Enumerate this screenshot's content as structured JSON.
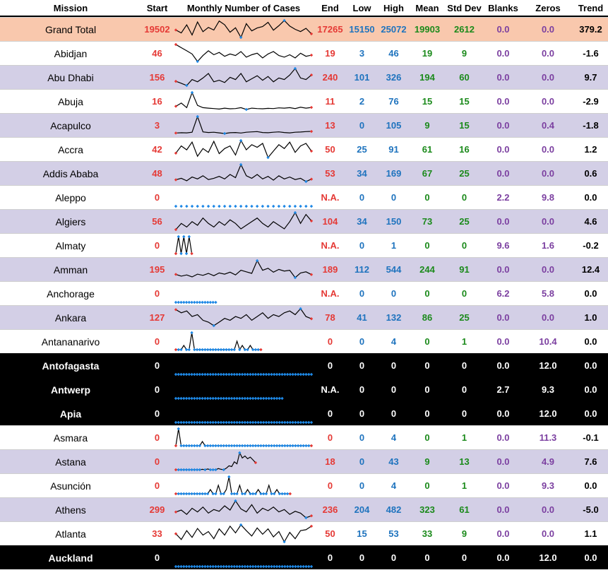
{
  "headers": {
    "mission": "Mission",
    "start": "Start",
    "spark": "Monthly Number of Cases",
    "end": "End",
    "low": "Low",
    "high": "High",
    "mean": "Mean",
    "std": "Std Dev",
    "blanks": "Blanks",
    "zeros": "Zeros",
    "trend": "Trend"
  },
  "colors": {
    "grand_bg": "#f9c8ad",
    "lavender_bg": "#d3cfe6",
    "dark_bg": "#000000",
    "spark_line": "#000000",
    "spark_marker": "#1e88e5",
    "spark_endpoint": "#e53935"
  },
  "rows": [
    {
      "mission": "Grand Total",
      "start": "19502",
      "end": "17265",
      "low": "15150",
      "high": "25072",
      "mean": "19903",
      "std": "2612",
      "blanks": "0.0",
      "zeros": "0.0",
      "trend": "379.2",
      "style": "grand"
    },
    {
      "mission": "Abidjan",
      "start": "46",
      "end": "19",
      "low": "3",
      "high": "46",
      "mean": "19",
      "std": "9",
      "blanks": "0.0",
      "zeros": "0.0",
      "trend": "-1.6",
      "style": "white"
    },
    {
      "mission": "Abu Dhabi",
      "start": "156",
      "end": "240",
      "low": "101",
      "high": "326",
      "mean": "194",
      "std": "60",
      "blanks": "0.0",
      "zeros": "0.0",
      "trend": "9.7",
      "style": "lav"
    },
    {
      "mission": "Abuja",
      "start": "16",
      "end": "11",
      "low": "2",
      "high": "76",
      "mean": "15",
      "std": "15",
      "blanks": "0.0",
      "zeros": "0.0",
      "trend": "-2.9",
      "style": "white"
    },
    {
      "mission": "Acapulco",
      "start": "3",
      "end": "13",
      "low": "0",
      "high": "105",
      "mean": "9",
      "std": "15",
      "blanks": "0.0",
      "zeros": "0.4",
      "trend": "-1.8",
      "style": "lav"
    },
    {
      "mission": "Accra",
      "start": "42",
      "end": "50",
      "low": "25",
      "high": "91",
      "mean": "61",
      "std": "16",
      "blanks": "0.0",
      "zeros": "0.0",
      "trend": "1.2",
      "style": "white"
    },
    {
      "mission": "Addis Ababa",
      "start": "48",
      "end": "53",
      "low": "34",
      "high": "169",
      "mean": "67",
      "std": "25",
      "blanks": "0.0",
      "zeros": "0.0",
      "trend": "0.6",
      "style": "lav"
    },
    {
      "mission": "Aleppo",
      "start": "0",
      "end": "N.A.",
      "low": "0",
      "high": "0",
      "mean": "0",
      "std": "0",
      "blanks": "2.2",
      "zeros": "9.8",
      "trend": "0.0",
      "style": "white"
    },
    {
      "mission": "Algiers",
      "start": "56",
      "end": "104",
      "low": "34",
      "high": "150",
      "mean": "73",
      "std": "25",
      "blanks": "0.0",
      "zeros": "0.0",
      "trend": "4.6",
      "style": "lav"
    },
    {
      "mission": "Almaty",
      "start": "0",
      "end": "N.A.",
      "low": "0",
      "high": "1",
      "mean": "0",
      "std": "0",
      "blanks": "9.6",
      "zeros": "1.6",
      "trend": "-0.2",
      "style": "white"
    },
    {
      "mission": "Amman",
      "start": "195",
      "end": "189",
      "low": "112",
      "high": "544",
      "mean": "244",
      "std": "91",
      "blanks": "0.0",
      "zeros": "0.0",
      "trend": "12.4",
      "style": "lav"
    },
    {
      "mission": "Anchorage",
      "start": "0",
      "end": "N.A.",
      "low": "0",
      "high": "0",
      "mean": "0",
      "std": "0",
      "blanks": "6.2",
      "zeros": "5.8",
      "trend": "0.0",
      "style": "white"
    },
    {
      "mission": "Ankara",
      "start": "127",
      "end": "78",
      "low": "41",
      "high": "132",
      "mean": "86",
      "std": "25",
      "blanks": "0.0",
      "zeros": "0.0",
      "trend": "1.0",
      "style": "lav"
    },
    {
      "mission": "Antananarivo",
      "start": "0",
      "end": "0",
      "low": "0",
      "high": "4",
      "mean": "0",
      "std": "1",
      "blanks": "0.0",
      "zeros": "10.4",
      "trend": "0.0",
      "style": "white"
    },
    {
      "mission": "Antofagasta",
      "start": "0",
      "end": "0",
      "low": "0",
      "high": "0",
      "mean": "0",
      "std": "0",
      "blanks": "0.0",
      "zeros": "12.0",
      "trend": "0.0",
      "style": "dark"
    },
    {
      "mission": "Antwerp",
      "start": "0",
      "end": "N.A.",
      "low": "0",
      "high": "0",
      "mean": "0",
      "std": "0",
      "blanks": "2.7",
      "zeros": "9.3",
      "trend": "0.0",
      "style": "dark"
    },
    {
      "mission": "Apia",
      "start": "0",
      "end": "0",
      "low": "0",
      "high": "0",
      "mean": "0",
      "std": "0",
      "blanks": "0.0",
      "zeros": "12.0",
      "trend": "0.0",
      "style": "dark"
    },
    {
      "mission": "Asmara",
      "start": "0",
      "end": "0",
      "low": "0",
      "high": "4",
      "mean": "0",
      "std": "1",
      "blanks": "0.0",
      "zeros": "11.3",
      "trend": "-0.1",
      "style": "white"
    },
    {
      "mission": "Astana",
      "start": "0",
      "end": "18",
      "low": "0",
      "high": "43",
      "mean": "9",
      "std": "13",
      "blanks": "0.0",
      "zeros": "4.9",
      "trend": "7.6",
      "style": "lav"
    },
    {
      "mission": "Asunción",
      "start": "0",
      "end": "0",
      "low": "0",
      "high": "4",
      "mean": "0",
      "std": "1",
      "blanks": "0.0",
      "zeros": "9.3",
      "trend": "0.0",
      "style": "white"
    },
    {
      "mission": "Athens",
      "start": "299",
      "end": "236",
      "low": "204",
      "high": "482",
      "mean": "323",
      "std": "61",
      "blanks": "0.0",
      "zeros": "0.0",
      "trend": "-5.0",
      "style": "lav"
    },
    {
      "mission": "Atlanta",
      "start": "33",
      "end": "50",
      "low": "15",
      "high": "53",
      "mean": "33",
      "std": "9",
      "blanks": "0.0",
      "zeros": "0.0",
      "trend": "1.1",
      "style": "white"
    },
    {
      "mission": "Auckland",
      "start": "0",
      "end": "0",
      "low": "0",
      "high": "0",
      "mean": "0",
      "std": "0",
      "blanks": "0.0",
      "zeros": "12.0",
      "trend": "0.0",
      "style": "dark"
    }
  ],
  "chart_data": {
    "type": "table",
    "title": "",
    "columns": [
      "Mission",
      "Start",
      "Monthly Number of Cases",
      "End",
      "Low",
      "High",
      "Mean",
      "Std Dev",
      "Blanks",
      "Zeros",
      "Trend"
    ],
    "sparklines": {
      "Grand Total": {
        "values": [
          19502,
          17800,
          22500,
          16600,
          24200,
          18500,
          21000,
          19500,
          24800,
          22600,
          18200,
          20800,
          15150,
          23200,
          19000,
          20700,
          21500,
          24000,
          19400,
          22000,
          25072,
          21800,
          19900,
          18600,
          20500,
          17265
        ]
      },
      "Abidjan": {
        "values": [
          46,
          38,
          30,
          22,
          3,
          18,
          30,
          20,
          26,
          16,
          22,
          18,
          28,
          14,
          20,
          24,
          12,
          22,
          28,
          18,
          14,
          20,
          12,
          24,
          16,
          19
        ]
      },
      "Abu Dhabi": {
        "values": [
          156,
          130,
          101,
          180,
          150,
          200,
          260,
          150,
          170,
          140,
          210,
          180,
          260,
          150,
          190,
          230,
          170,
          220,
          150,
          200,
          180,
          240,
          326,
          200,
          180,
          240
        ]
      },
      "Abuja": {
        "values": [
          16,
          30,
          10,
          76,
          20,
          10,
          8,
          6,
          4,
          8,
          5,
          6,
          10,
          2,
          8,
          6,
          5,
          7,
          6,
          9,
          8,
          10,
          6,
          12,
          8,
          11
        ]
      },
      "Acapulco": {
        "values": [
          3,
          5,
          4,
          8,
          105,
          10,
          6,
          8,
          4,
          0,
          5,
          6,
          3,
          8,
          10,
          12,
          6,
          5,
          8,
          10,
          6,
          4,
          8,
          9,
          12,
          13
        ]
      },
      "Accra": {
        "values": [
          42,
          70,
          55,
          85,
          30,
          60,
          45,
          88,
          40,
          60,
          70,
          35,
          91,
          55,
          75,
          65,
          80,
          25,
          50,
          75,
          60,
          85,
          45,
          70,
          80,
          50
        ]
      },
      "Addis Ababa": {
        "values": [
          48,
          60,
          40,
          70,
          55,
          80,
          50,
          60,
          75,
          55,
          90,
          65,
          169,
          80,
          60,
          90,
          55,
          75,
          45,
          80,
          55,
          70,
          50,
          60,
          34,
          53
        ]
      },
      "Aleppo": {
        "values": [
          0,
          0,
          0,
          0,
          0,
          0,
          0,
          0,
          0,
          0,
          0,
          0,
          0,
          0,
          0,
          0,
          0,
          0,
          0,
          0,
          0,
          0,
          0,
          0,
          0,
          0
        ]
      },
      "Algiers": {
        "values": [
          56,
          90,
          70,
          100,
          80,
          120,
          90,
          70,
          100,
          80,
          110,
          90,
          60,
          80,
          100,
          120,
          90,
          70,
          100,
          80,
          60,
          100,
          150,
          90,
          140,
          104
        ]
      },
      "Almaty": {
        "values": [
          0,
          1,
          0,
          1,
          0,
          1,
          0
        ]
      },
      "Amman": {
        "values": [
          195,
          150,
          180,
          130,
          200,
          170,
          220,
          160,
          230,
          200,
          250,
          180,
          300,
          260,
          220,
          544,
          300,
          350,
          250,
          320,
          280,
          300,
          112,
          230,
          260,
          189
        ]
      },
      "Anchorage": {
        "values": [
          0,
          0,
          0,
          0,
          0,
          0,
          0,
          0,
          0,
          0,
          0,
          0,
          0,
          0,
          0,
          0
        ]
      },
      "Ankara": {
        "values": [
          127,
          110,
          120,
          90,
          100,
          70,
          60,
          41,
          60,
          80,
          70,
          90,
          80,
          100,
          70,
          90,
          110,
          80,
          100,
          90,
          110,
          120,
          100,
          132,
          90,
          78
        ]
      },
      "Antananarivo": {
        "values": [
          0,
          0,
          0,
          1,
          0,
          0,
          4,
          0,
          0,
          0,
          0,
          0,
          0,
          0,
          0,
          0,
          0,
          0,
          0,
          0,
          0,
          0,
          0,
          2,
          0,
          1,
          0,
          0,
          1,
          0,
          0,
          0,
          0
        ]
      },
      "Antofagasta": {
        "values": [
          0,
          0,
          0,
          0,
          0,
          0,
          0,
          0,
          0,
          0,
          0,
          0,
          0,
          0,
          0,
          0,
          0,
          0,
          0,
          0,
          0,
          0,
          0,
          0,
          0,
          0,
          0,
          0,
          0,
          0,
          0,
          0,
          0,
          0,
          0,
          0,
          0,
          0,
          0,
          0,
          0,
          0,
          0,
          0,
          0,
          0,
          0,
          0,
          0,
          0,
          0,
          0
        ]
      },
      "Antwerp": {
        "values": [
          0,
          0,
          0,
          0,
          0,
          0,
          0,
          0,
          0,
          0,
          0,
          0,
          0,
          0,
          0,
          0,
          0,
          0,
          0,
          0,
          0,
          0,
          0,
          0,
          0,
          0,
          0,
          0,
          0,
          0,
          0,
          0,
          0,
          0,
          0,
          0,
          0,
          0,
          0,
          0,
          0
        ]
      },
      "Apia": {
        "values": [
          0,
          0,
          0,
          0,
          0,
          0,
          0,
          0,
          0,
          0,
          0,
          0,
          0,
          0,
          0,
          0,
          0,
          0,
          0,
          0,
          0,
          0,
          0,
          0,
          0,
          0,
          0,
          0,
          0,
          0,
          0,
          0,
          0,
          0,
          0,
          0,
          0,
          0,
          0,
          0,
          0,
          0,
          0,
          0,
          0,
          0,
          0,
          0,
          0,
          0,
          0,
          0
        ]
      },
      "Asmara": {
        "values": [
          0,
          4,
          0,
          0,
          0,
          0,
          0,
          0,
          0,
          0,
          1,
          0,
          0,
          0,
          0,
          0,
          0,
          0,
          0,
          0,
          0,
          0,
          0,
          0,
          0,
          0,
          0,
          0,
          0,
          0,
          0,
          0,
          0,
          0,
          0,
          0,
          0,
          0,
          0,
          0,
          0,
          0,
          0,
          0,
          0,
          0,
          0,
          0,
          0,
          0,
          0,
          0
        ]
      },
      "Astana": {
        "values": [
          0,
          0,
          0,
          0,
          0,
          0,
          0,
          0,
          0,
          0,
          1,
          0,
          2,
          0,
          0,
          0,
          3,
          1,
          0,
          4,
          10,
          8,
          20,
          15,
          43,
          30,
          35,
          28,
          32,
          25,
          18
        ]
      },
      "Asunción": {
        "values": [
          0,
          0,
          0,
          0,
          0,
          0,
          0,
          0,
          0,
          0,
          0,
          0,
          0,
          1,
          0,
          0,
          2,
          0,
          0,
          1,
          4,
          0,
          0,
          0,
          2,
          0,
          0,
          1,
          0,
          0,
          0,
          1,
          0,
          0,
          0,
          2,
          0,
          0,
          1,
          0,
          0,
          0,
          0,
          0
        ]
      },
      "Athens": {
        "values": [
          299,
          330,
          260,
          360,
          300,
          380,
          280,
          340,
          310,
          400,
          330,
          482,
          350,
          300,
          420,
          280,
          360,
          320,
          380,
          300,
          340,
          260,
          310,
          280,
          204,
          236
        ]
      },
      "Atlanta": {
        "values": [
          33,
          20,
          40,
          25,
          45,
          30,
          38,
          22,
          44,
          30,
          50,
          35,
          53,
          40,
          28,
          46,
          32,
          44,
          26,
          38,
          15,
          36,
          22,
          40,
          42,
          50
        ]
      },
      "Auckland": {
        "values": [
          0,
          0,
          0,
          0,
          0,
          0,
          0,
          0,
          0,
          0,
          0,
          0,
          0,
          0,
          0,
          0,
          0,
          0,
          0,
          0,
          0,
          0,
          0,
          0,
          0,
          0,
          0,
          0,
          0,
          0,
          0,
          0,
          0,
          0,
          0,
          0,
          0,
          0,
          0,
          0,
          0,
          0,
          0,
          0,
          0,
          0,
          0,
          0,
          0,
          0,
          0,
          0
        ]
      }
    }
  }
}
